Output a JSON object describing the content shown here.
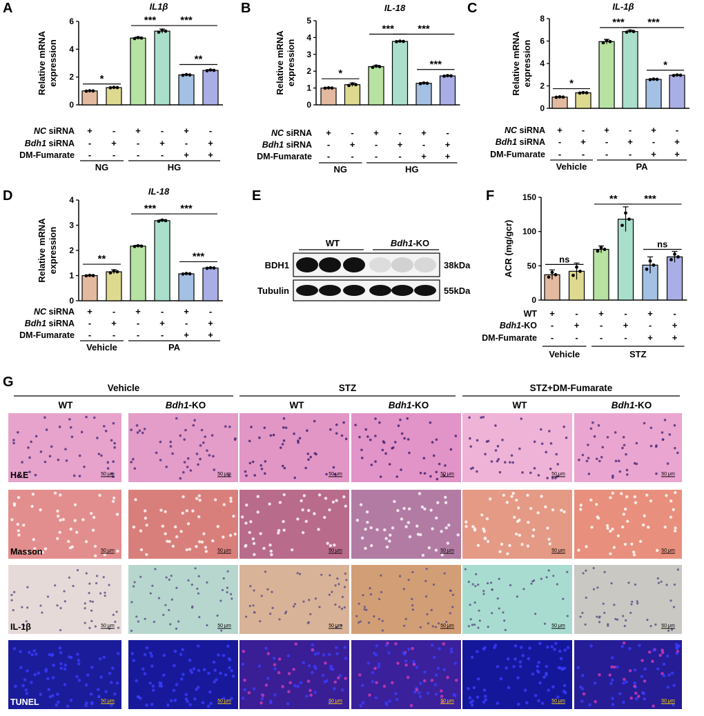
{
  "panels": {
    "A": {
      "letter": "A",
      "title": "IL1β",
      "ylabel": [
        "Relative  mRNA",
        "expression"
      ],
      "ymax": 6,
      "yticks": [
        0,
        2,
        4,
        6
      ],
      "values": [
        1.0,
        1.24,
        4.8,
        5.3,
        2.15,
        2.48
      ],
      "errors": [
        0.03,
        0.03,
        0.07,
        0.15,
        0.05,
        0.05
      ],
      "colors": [
        "#E3B9A0",
        "#DDD98F",
        "#B7E2A2",
        "#A9DFCB",
        "#A4C0E3",
        "#AAAEE6"
      ],
      "sig": [
        {
          "l": 0,
          "r": 1,
          "v": 1.5,
          "t": "*"
        },
        {
          "l": 2,
          "r": 3,
          "v": 5.7,
          "t": "***"
        },
        {
          "l": 3,
          "r": 5,
          "v": 5.7,
          "t": "***"
        },
        {
          "l": 4,
          "r": 5,
          "v": 2.9,
          "t": "**"
        }
      ],
      "rows": [
        {
          "label": "NC siRNA",
          "pre": "NC",
          "signs": [
            "+",
            "-",
            "+",
            "-",
            "+",
            "-"
          ]
        },
        {
          "label": "Bdh1 siRNA",
          "pre": "Bdh1",
          "signs": [
            "-",
            "+",
            "-",
            "+",
            "-",
            "+"
          ]
        },
        {
          "label": "DM-Fumarate",
          "pre": "",
          "signs": [
            "-",
            "-",
            "-",
            "-",
            "+",
            "+"
          ]
        }
      ],
      "groups": [
        {
          "name": "NG",
          "from": 0,
          "to": 1
        },
        {
          "name": "HG",
          "from": 2,
          "to": 5
        }
      ]
    },
    "B": {
      "letter": "B",
      "title": "IL-18",
      "ylabel": [
        "Relative  mRNA",
        "expression"
      ],
      "ymax": 5,
      "yticks": [
        0,
        1,
        2,
        3,
        4,
        5
      ],
      "values": [
        1.0,
        1.2,
        2.27,
        3.77,
        1.28,
        1.72
      ],
      "errors": [
        0.02,
        0.1,
        0.08,
        0.03,
        0.04,
        0.03
      ],
      "colors": [
        "#E3B9A0",
        "#DDD98F",
        "#B7E2A2",
        "#A9DFCB",
        "#A4C0E3",
        "#AAAEE6"
      ],
      "sig": [
        {
          "l": 0,
          "r": 1,
          "v": 1.55,
          "t": "*"
        },
        {
          "l": 2,
          "r": 3,
          "v": 4.2,
          "t": "***"
        },
        {
          "l": 3,
          "r": 5,
          "v": 4.2,
          "t": "***"
        },
        {
          "l": 4,
          "r": 5,
          "v": 2.1,
          "t": "***"
        }
      ],
      "rows": [
        {
          "label": "NC siRNA",
          "pre": "NC",
          "signs": [
            "+",
            "-",
            "+",
            "-",
            "+",
            "-"
          ]
        },
        {
          "label": "Bdh1 siRNA",
          "pre": "Bdh1",
          "signs": [
            "-",
            "+",
            "-",
            "+",
            "-",
            "+"
          ]
        },
        {
          "label": "DM-Fumarate",
          "pre": "",
          "signs": [
            "-",
            "-",
            "-",
            "-",
            "+",
            "+"
          ]
        }
      ],
      "groups": [
        {
          "name": "NG",
          "from": 0,
          "to": 1
        },
        {
          "name": "HG",
          "from": 2,
          "to": 5
        }
      ]
    },
    "C": {
      "letter": "C",
      "title": "IL-1β",
      "ylabel": [
        "Relative  mRNA",
        "expression"
      ],
      "ymax": 8,
      "yticks": [
        0,
        2,
        4,
        6,
        8
      ],
      "values": [
        1.0,
        1.38,
        5.95,
        6.85,
        2.58,
        2.95
      ],
      "errors": [
        0.04,
        0.04,
        0.2,
        0.12,
        0.05,
        0.05
      ],
      "colors": [
        "#E3B9A0",
        "#DDD98F",
        "#B7E2A2",
        "#A9DFCB",
        "#A4C0E3",
        "#AAAEE6"
      ],
      "sig": [
        {
          "l": 0,
          "r": 1,
          "v": 1.75,
          "t": "*"
        },
        {
          "l": 2,
          "r": 3,
          "v": 7.2,
          "t": "***"
        },
        {
          "l": 3,
          "r": 5,
          "v": 7.2,
          "t": "***"
        },
        {
          "l": 4,
          "r": 5,
          "v": 3.4,
          "t": "*"
        }
      ],
      "rows": [
        {
          "label": "NC siRNA",
          "pre": "NC",
          "signs": [
            "+",
            "-",
            "+",
            "-",
            "+",
            "-"
          ]
        },
        {
          "label": "Bdh1 siRNA",
          "pre": "Bdh1",
          "signs": [
            "-",
            "+",
            "-",
            "+",
            "-",
            "+"
          ]
        },
        {
          "label": "DM-Fumarate",
          "pre": "",
          "signs": [
            "-",
            "-",
            "-",
            "-",
            "+",
            "+"
          ]
        }
      ],
      "groups": [
        {
          "name": "Vehicle",
          "from": 0,
          "to": 1
        },
        {
          "name": "PA",
          "from": 2,
          "to": 5
        }
      ]
    },
    "D": {
      "letter": "D",
      "title": "IL-18",
      "ylabel": [
        "Relative  mRNA",
        "expression"
      ],
      "ymax": 4,
      "yticks": [
        0,
        1,
        2,
        3,
        4
      ],
      "values": [
        1.0,
        1.15,
        2.17,
        3.18,
        1.07,
        1.3
      ],
      "errors": [
        0.02,
        0.08,
        0.03,
        0.04,
        0.02,
        0.02
      ],
      "colors": [
        "#E3B9A0",
        "#DDD98F",
        "#B7E2A2",
        "#A9DFCB",
        "#A4C0E3",
        "#AAAEE6"
      ],
      "sig": [
        {
          "l": 0,
          "r": 1,
          "v": 1.45,
          "t": "**"
        },
        {
          "l": 2,
          "r": 3,
          "v": 3.45,
          "t": "***"
        },
        {
          "l": 3,
          "r": 5,
          "v": 3.45,
          "t": "***"
        },
        {
          "l": 4,
          "r": 5,
          "v": 1.55,
          "t": "***"
        }
      ],
      "rows": [
        {
          "label": "NC siRNA",
          "pre": "NC",
          "signs": [
            "+",
            "-",
            "+",
            "-",
            "+",
            "-"
          ]
        },
        {
          "label": "Bdh1 siRNA",
          "pre": "Bdh1",
          "signs": [
            "-",
            "+",
            "-",
            "+",
            "-",
            "+"
          ]
        },
        {
          "label": "DM-Fumarate",
          "pre": "",
          "signs": [
            "-",
            "-",
            "-",
            "-",
            "+",
            "+"
          ]
        }
      ],
      "groups": [
        {
          "name": "Vehicle",
          "from": 0,
          "to": 1
        },
        {
          "name": "PA",
          "from": 2,
          "to": 5
        }
      ]
    },
    "F": {
      "letter": "F",
      "title": "",
      "ylabel": [
        "ACR (mg/gcr)"
      ],
      "ymax": 150,
      "yticks": [
        0,
        50,
        100,
        150
      ],
      "values": [
        37,
        42,
        74,
        118,
        51,
        63
      ],
      "errors": [
        7,
        12,
        5,
        18,
        12,
        8
      ],
      "colors": [
        "#E3B9A0",
        "#DDD98F",
        "#B7E2A2",
        "#A9DFCB",
        "#A4C0E3",
        "#AAAEE6"
      ],
      "sig": [
        {
          "l": 0,
          "r": 1,
          "v": 52,
          "t": "ns"
        },
        {
          "l": 2,
          "r": 3,
          "v": 140,
          "t": "**"
        },
        {
          "l": 3,
          "r": 5,
          "v": 140,
          "t": "***"
        },
        {
          "l": 4,
          "r": 5,
          "v": 74,
          "t": "ns"
        }
      ],
      "rows": [
        {
          "label": "WT",
          "pre": "",
          "signs": [
            "+",
            "-",
            "+",
            "-",
            "+",
            "-"
          ]
        },
        {
          "label": "Bdh1-KO",
          "pre": "Bdh1",
          "signs": [
            "-",
            "+",
            "-",
            "+",
            "-",
            "+"
          ]
        },
        {
          "label": "DM-Fumarate",
          "pre": "",
          "signs": [
            "-",
            "-",
            "-",
            "-",
            "+",
            "+"
          ]
        }
      ],
      "groups": [
        {
          "name": "Vehicle",
          "from": 0,
          "to": 1
        },
        {
          "name": "STZ",
          "from": 2,
          "to": 5
        }
      ]
    }
  },
  "panelE": {
    "letter": "E",
    "wt": "WT",
    "ko": "Bdh1-KO",
    "bands": [
      {
        "label": "BDH1",
        "kda": "38kDa"
      },
      {
        "label": "Tubulin",
        "kda": "55kDa"
      }
    ]
  },
  "panelG": {
    "letter": "G",
    "groups": [
      "Vehicle",
      "STZ",
      "STZ+DM-Fumarate"
    ],
    "cols": [
      "WT",
      "Bdh1-KO",
      "WT",
      "Bdh1-KO",
      "WT",
      "Bdh1-KO"
    ],
    "stains": [
      "H&E",
      "Masson",
      "IL-1β",
      "TUNEL"
    ],
    "scale": "50 μm",
    "tint": [
      [
        "#E7A3CC",
        "#E49CC8",
        "#E296C6",
        "#E293C7",
        "#EFB3D7",
        "#EAA6D0"
      ],
      [
        "#E38E8E",
        "#D97F7B",
        "#B96B8C",
        "#B27BA3",
        "#E59A86",
        "#E8907D"
      ],
      [
        "#E6DAD8",
        "#B7D6CE",
        "#D9B397",
        "#D29E76",
        "#A9DCD0",
        "#C9C8C2"
      ],
      [
        "#1A1C9A",
        "#17199A",
        "#391E96",
        "#3A209A",
        "#15179A",
        "#251C96"
      ]
    ],
    "dots": [
      "#4B2B7A",
      "#4B2B7A",
      "#3C1F6A",
      "#3C1F6A",
      "#4B2B7A",
      "#4B2B7A"
    ]
  }
}
